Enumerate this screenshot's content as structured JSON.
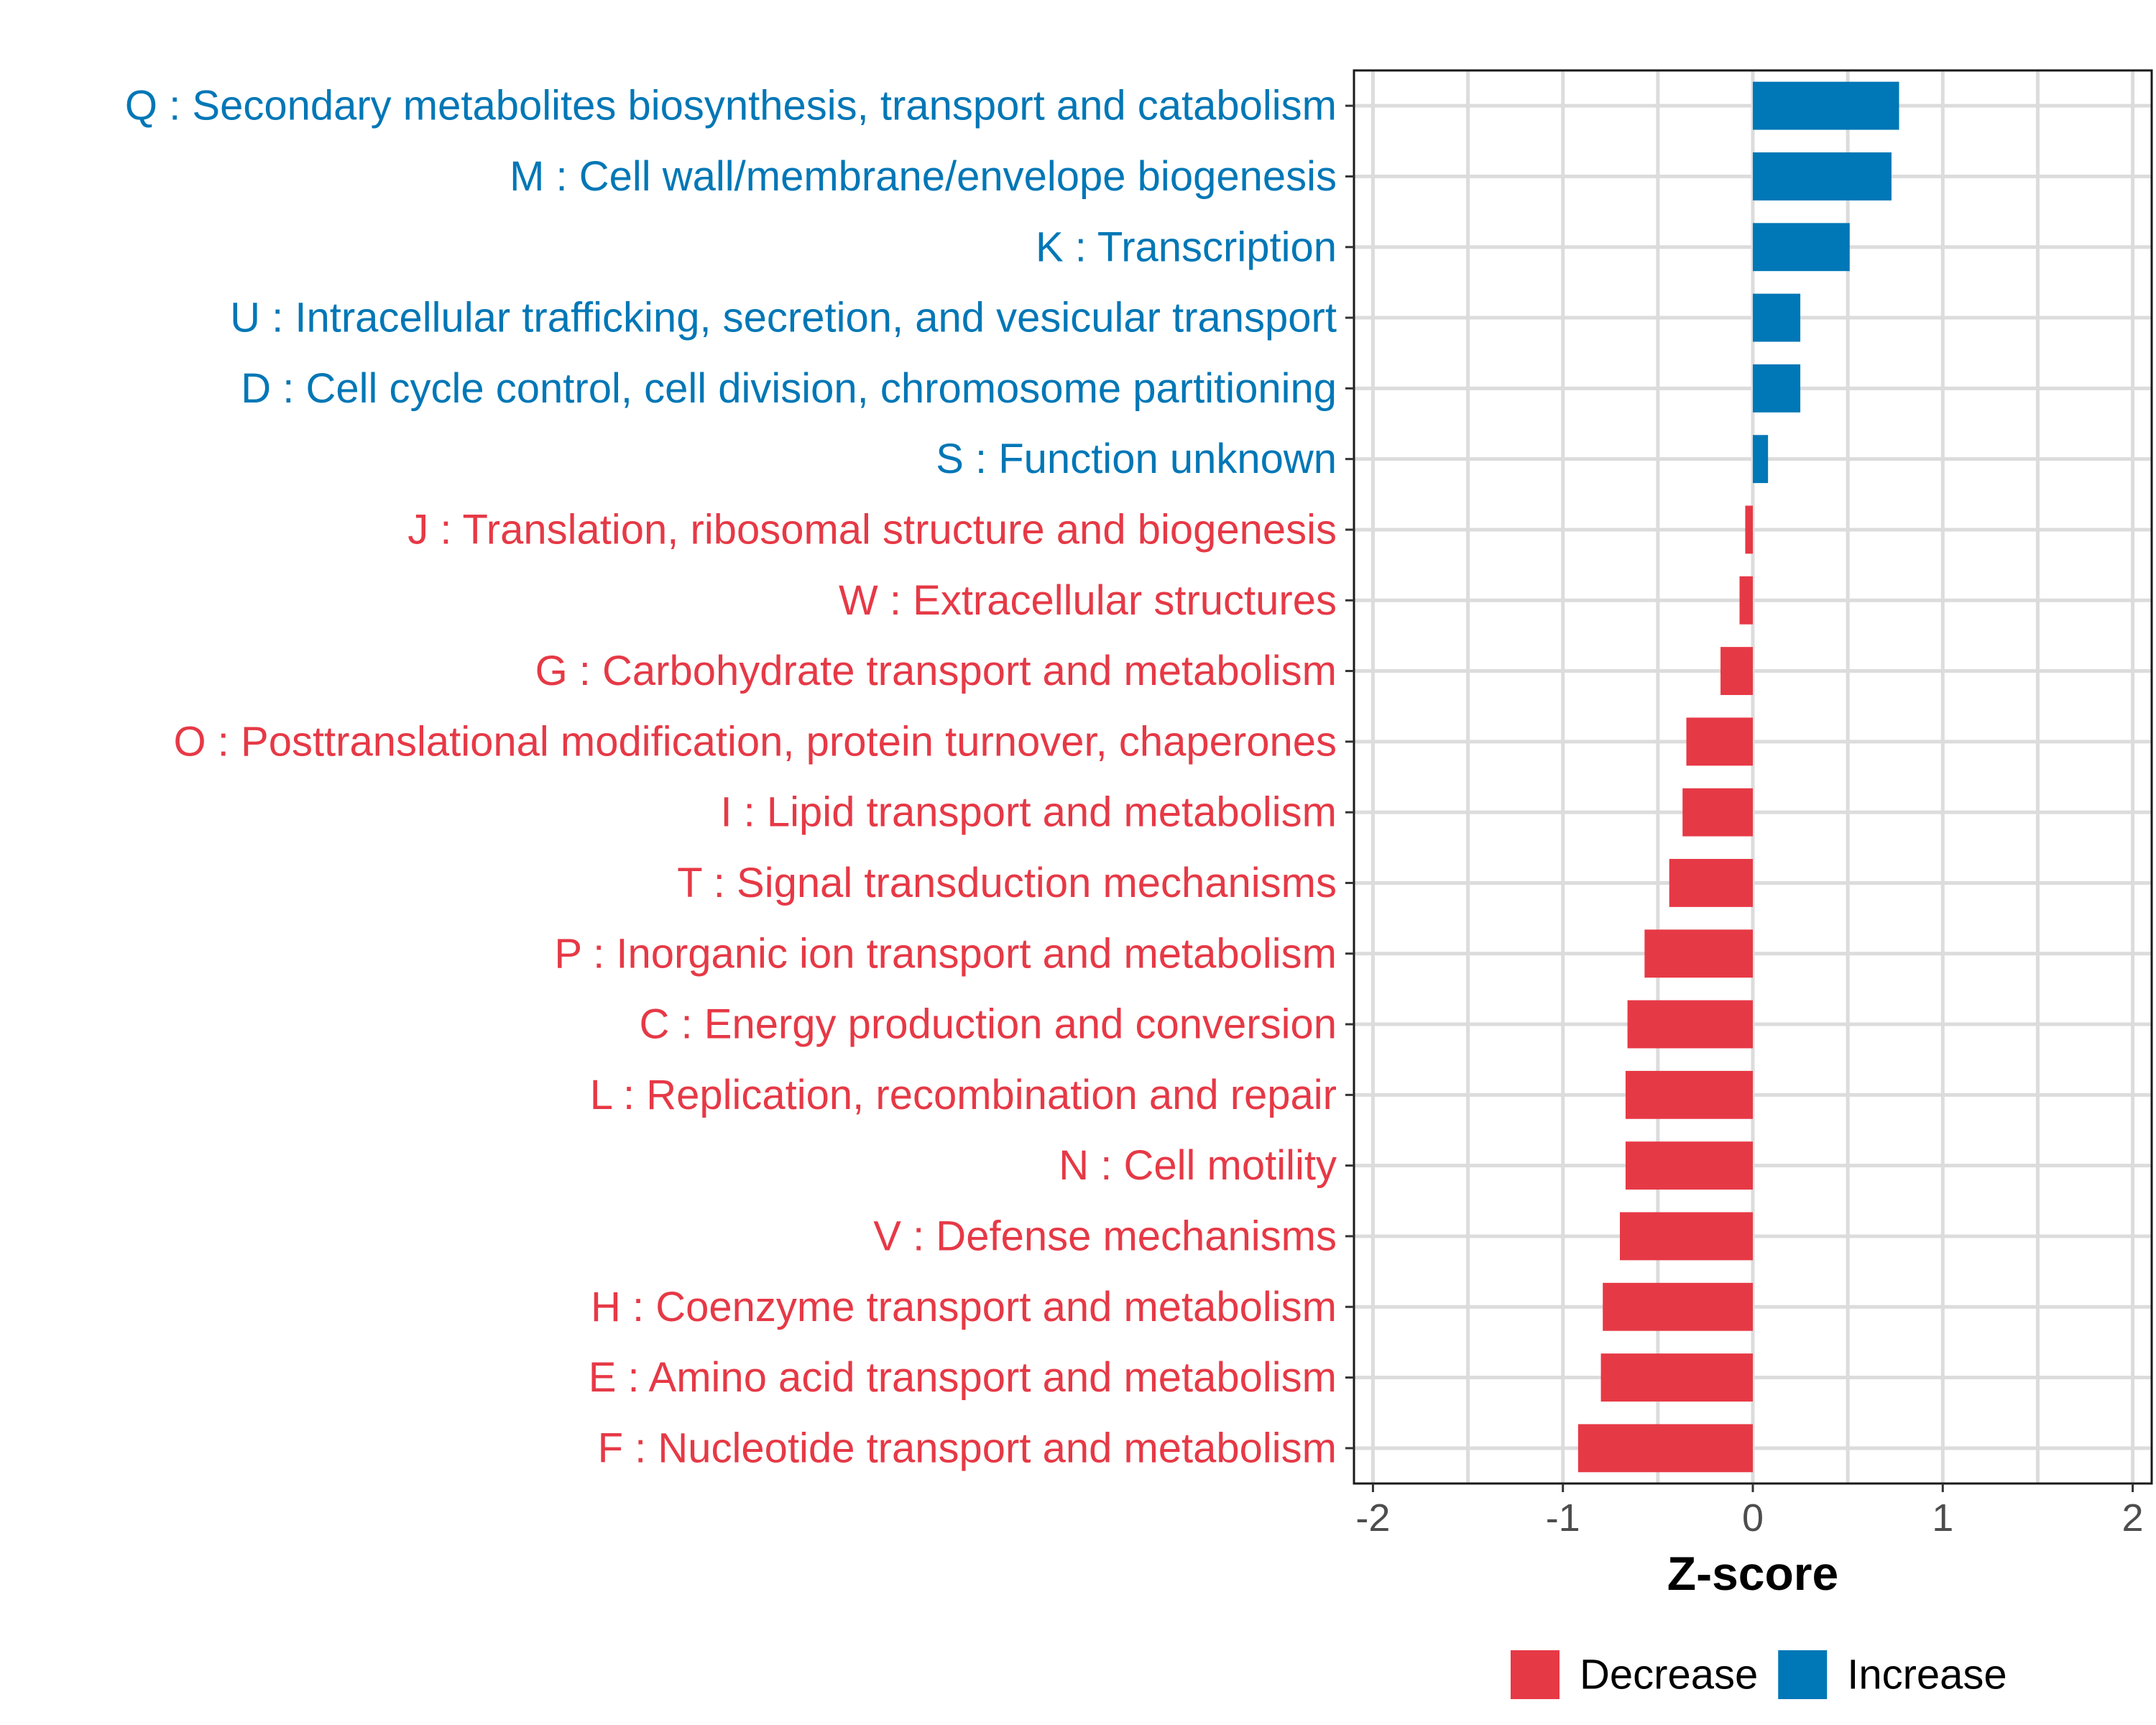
{
  "chart_data": {
    "type": "bar",
    "orientation": "horizontal",
    "xlabel": "Z-score",
    "xlim": [
      -2.1,
      2.1
    ],
    "xticks": [
      -2,
      -1,
      0,
      1,
      2
    ],
    "xtick_labels": [
      "-2",
      "-1",
      "0",
      "1",
      "2"
    ],
    "grid": true,
    "legend": {
      "placement": "bottom",
      "entries": [
        {
          "label": "Decrease",
          "color": "#E63946"
        },
        {
          "label": "Increase",
          "color": "#0077B6"
        }
      ]
    },
    "colors": {
      "Decrease": "#E63946",
      "Increase": "#0077B6"
    },
    "categories": [
      {
        "label": "Q : Secondary metabolites biosynthesis, transport and catabolism",
        "value": 0.77,
        "direction": "Increase"
      },
      {
        "label": "M : Cell wall/membrane/envelope biogenesis",
        "value": 0.73,
        "direction": "Increase"
      },
      {
        "label": "K : Transcription",
        "value": 0.51,
        "direction": "Increase"
      },
      {
        "label": "U : Intracellular trafficking, secretion, and vesicular transport",
        "value": 0.25,
        "direction": "Increase"
      },
      {
        "label": "D : Cell cycle control, cell division, chromosome partitioning",
        "value": 0.25,
        "direction": "Increase"
      },
      {
        "label": "S : Function unknown",
        "value": 0.08,
        "direction": "Increase"
      },
      {
        "label": "J : Translation, ribosomal structure and biogenesis",
        "value": -0.04,
        "direction": "Decrease"
      },
      {
        "label": "W : Extracellular structures",
        "value": -0.07,
        "direction": "Decrease"
      },
      {
        "label": "G : Carbohydrate transport and metabolism",
        "value": -0.17,
        "direction": "Decrease"
      },
      {
        "label": "O : Posttranslational modification, protein turnover, chaperones",
        "value": -0.35,
        "direction": "Decrease"
      },
      {
        "label": "I : Lipid transport and metabolism",
        "value": -0.37,
        "direction": "Decrease"
      },
      {
        "label": "T : Signal transduction mechanisms",
        "value": -0.44,
        "direction": "Decrease"
      },
      {
        "label": "P : Inorganic ion transport and metabolism",
        "value": -0.57,
        "direction": "Decrease"
      },
      {
        "label": "C : Energy production and conversion",
        "value": -0.66,
        "direction": "Decrease"
      },
      {
        "label": "L : Replication, recombination and repair",
        "value": -0.67,
        "direction": "Decrease"
      },
      {
        "label": "N : Cell motility",
        "value": -0.67,
        "direction": "Decrease"
      },
      {
        "label": "V : Defense mechanisms",
        "value": -0.7,
        "direction": "Decrease"
      },
      {
        "label": "H : Coenzyme transport and metabolism",
        "value": -0.79,
        "direction": "Decrease"
      },
      {
        "label": "E : Amino acid transport and metabolism",
        "value": -0.8,
        "direction": "Decrease"
      },
      {
        "label": "F : Nucleotide transport and metabolism",
        "value": -0.92,
        "direction": "Decrease"
      }
    ]
  }
}
